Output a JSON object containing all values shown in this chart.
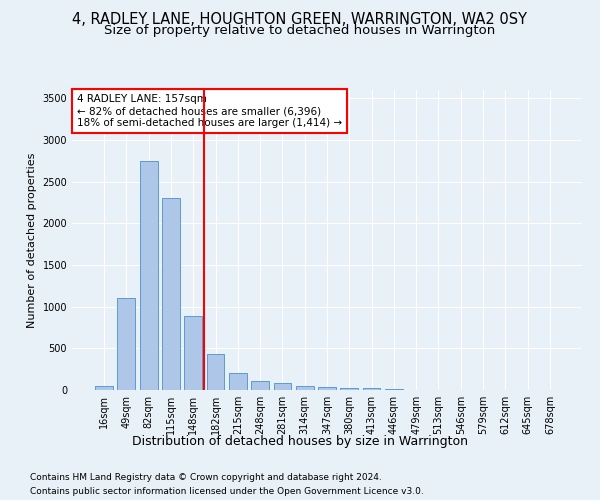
{
  "title": "4, RADLEY LANE, HOUGHTON GREEN, WARRINGTON, WA2 0SY",
  "subtitle": "Size of property relative to detached houses in Warrington",
  "xlabel": "Distribution of detached houses by size in Warrington",
  "ylabel": "Number of detached properties",
  "categories": [
    "16sqm",
    "49sqm",
    "82sqm",
    "115sqm",
    "148sqm",
    "182sqm",
    "215sqm",
    "248sqm",
    "281sqm",
    "314sqm",
    "347sqm",
    "380sqm",
    "413sqm",
    "446sqm",
    "479sqm",
    "513sqm",
    "546sqm",
    "579sqm",
    "612sqm",
    "645sqm",
    "678sqm"
  ],
  "values": [
    50,
    1100,
    2750,
    2300,
    890,
    430,
    200,
    105,
    90,
    50,
    35,
    25,
    20,
    10,
    5,
    5,
    5,
    5,
    5,
    5,
    5
  ],
  "bar_color": "#aec6e8",
  "bar_edge_color": "#5b9bd5",
  "vline_x": 4.5,
  "vline_color": "red",
  "annotation_title": "4 RADLEY LANE: 157sqm",
  "annotation_line1": "← 82% of detached houses are smaller (6,396)",
  "annotation_line2": "18% of semi-detached houses are larger (1,414) →",
  "annotation_box_color": "white",
  "annotation_box_edge": "red",
  "ylim": [
    0,
    3600
  ],
  "yticks": [
    0,
    500,
    1000,
    1500,
    2000,
    2500,
    3000,
    3500
  ],
  "bg_color": "#e8f0f8",
  "grid_color": "white",
  "footnote1": "Contains HM Land Registry data © Crown copyright and database right 2024.",
  "footnote2": "Contains public sector information licensed under the Open Government Licence v3.0.",
  "title_fontsize": 10.5,
  "subtitle_fontsize": 9.5,
  "xlabel_fontsize": 9,
  "ylabel_fontsize": 8,
  "tick_fontsize": 7,
  "annotation_fontsize": 7.5,
  "footnote_fontsize": 6.5
}
